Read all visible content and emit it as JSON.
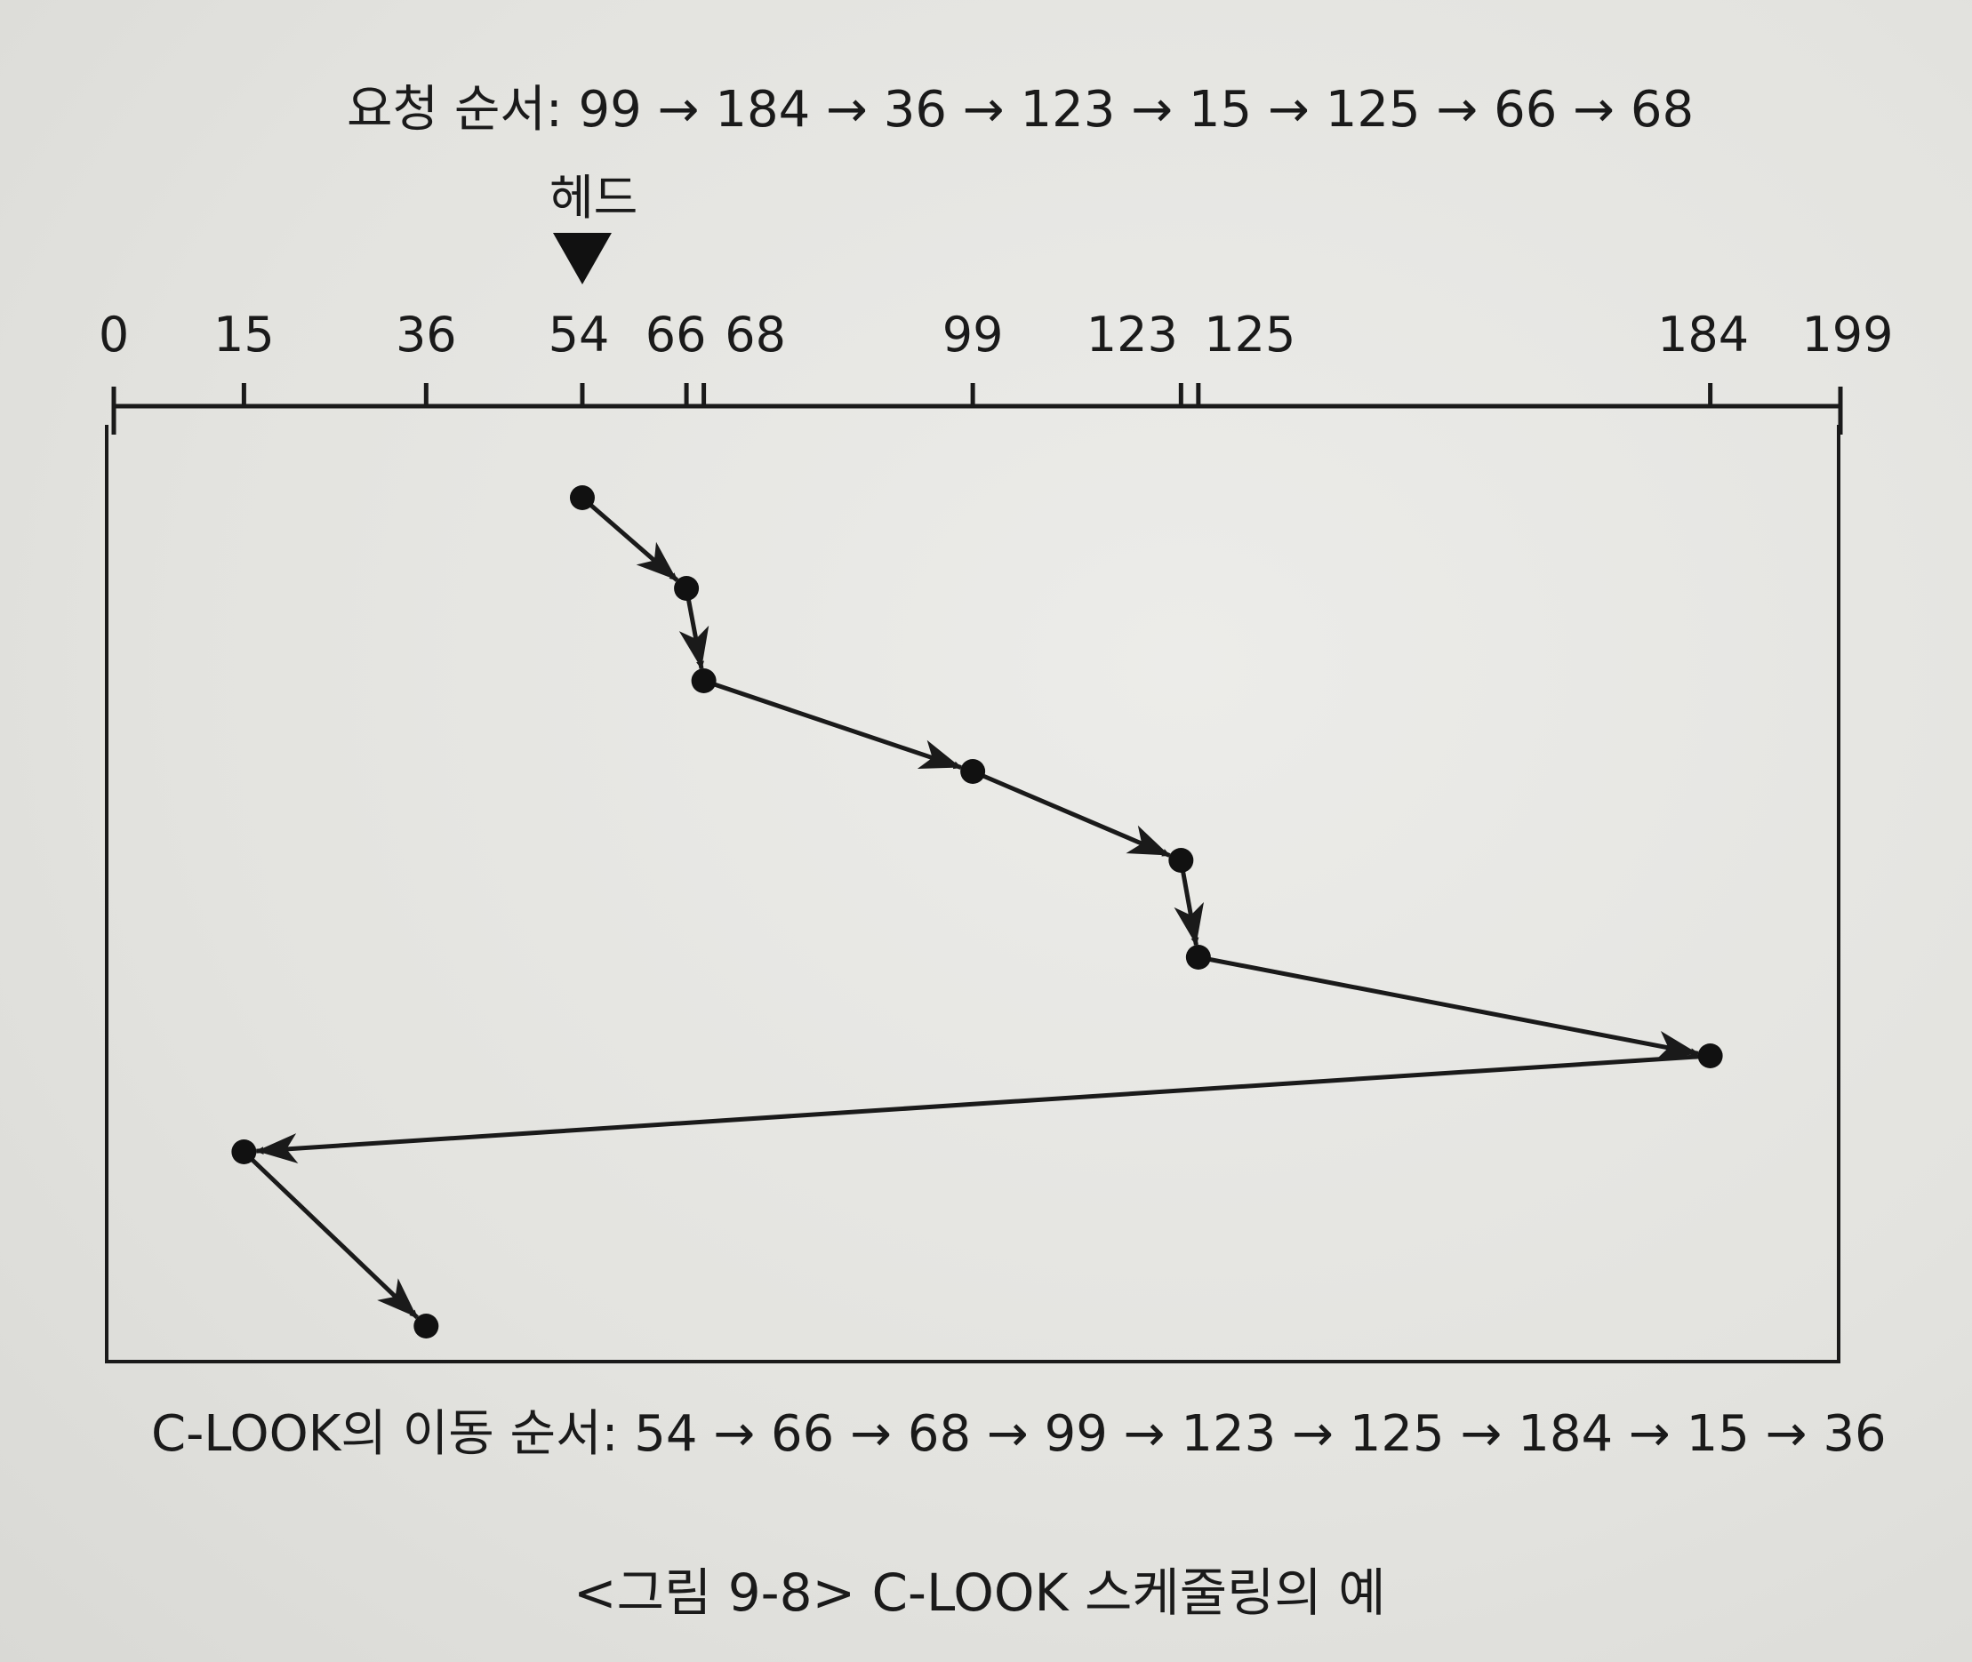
{
  "request_order": "요청 순서: 99 → 184 → 36 → 123 → 15 → 125 → 66 → 68",
  "head_label": "헤드",
  "movement_order": "C-LOOK의 이동 순서: 54 → 66 → 68 → 99 → 123 → 125 → 184 → 15 → 36",
  "figure_caption": "<그림 9-8> C-LOOK 스케줄링의 예",
  "chart_data": {
    "type": "line",
    "axis_min": 0,
    "axis_max": 199,
    "ticks": [
      0,
      15,
      36,
      54,
      66,
      68,
      99,
      123,
      125,
      184,
      199
    ],
    "tick_labels": [
      "0",
      "15",
      "36",
      "54",
      "66",
      "68",
      "99",
      "123",
      "125",
      "184",
      "199"
    ],
    "head_start": 54,
    "sequence": [
      54,
      66,
      68,
      99,
      123,
      125,
      184,
      15,
      36
    ]
  }
}
